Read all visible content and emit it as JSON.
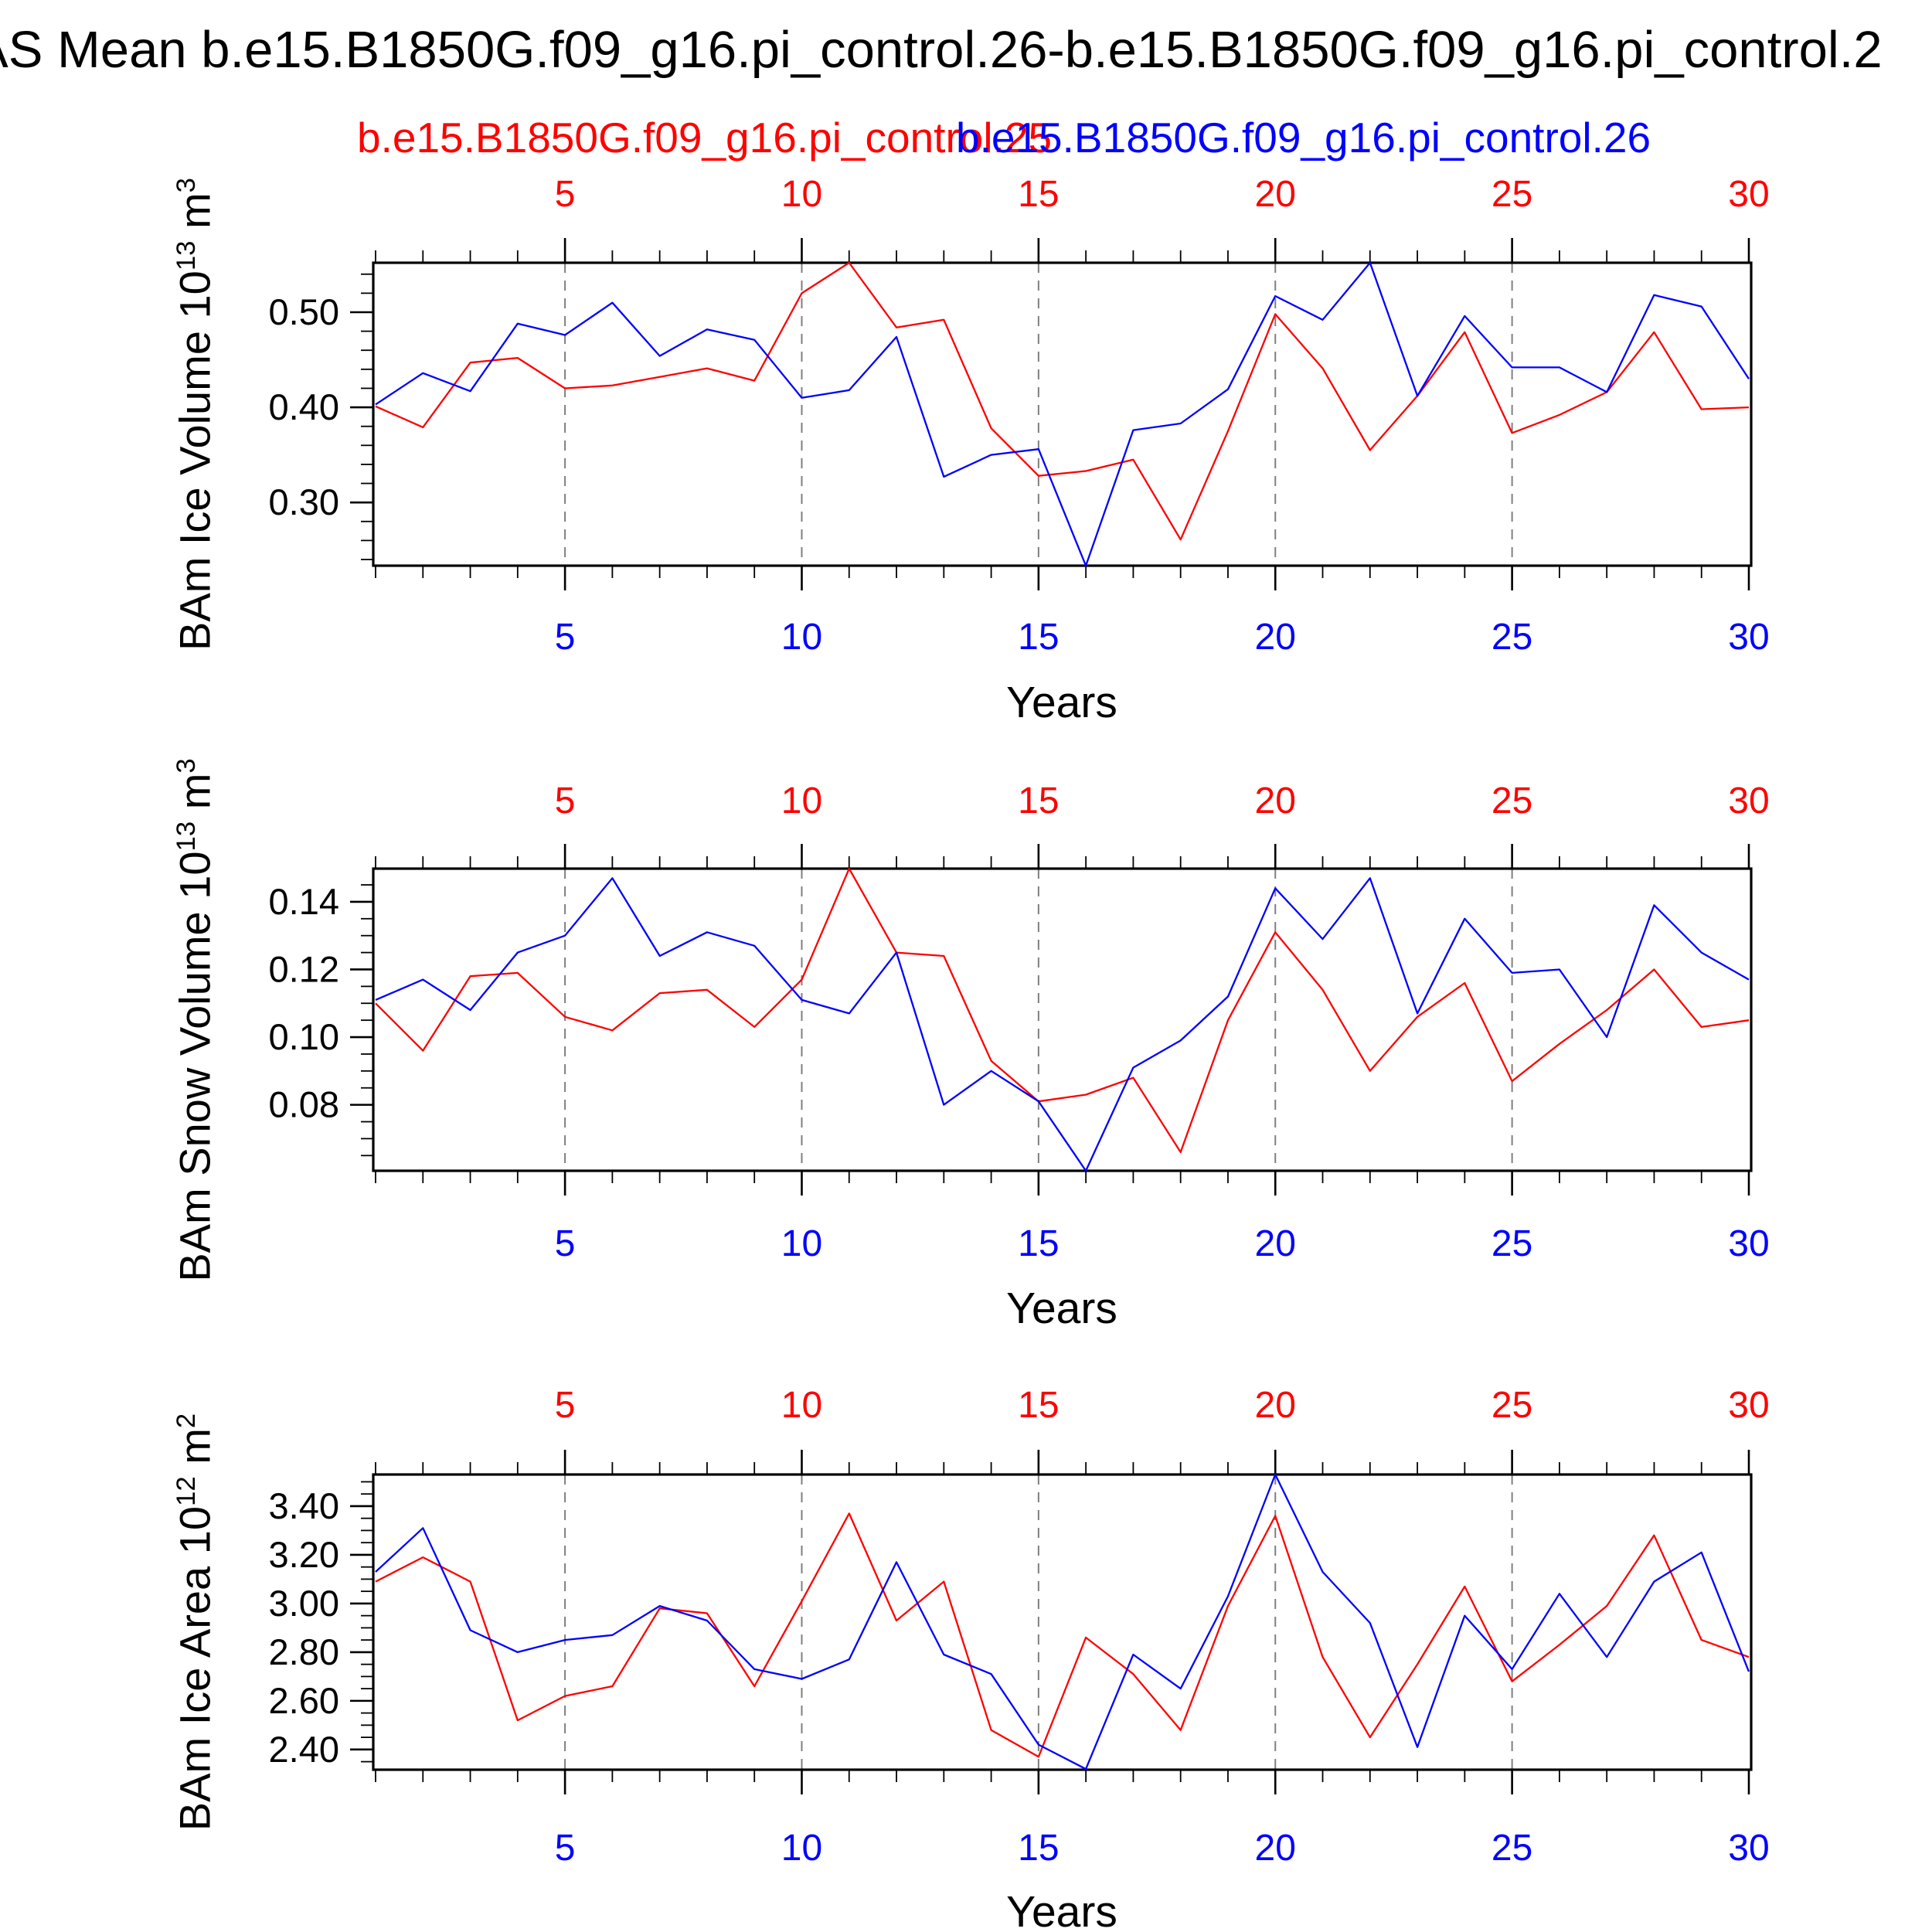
{
  "title": "AS Mean b.e15.B1850G.f09_g16.pi_control.26-b.e15.B1850G.f09_g16.pi_control.2",
  "legend": {
    "red_label": "b.e15.B1850G.f09_g16.pi_control.25",
    "blue_label": "b.e15.B1850G.f09_g16.pi_control.26"
  },
  "colors": {
    "red_series": "#ff0000",
    "blue_series": "#0000ff",
    "grid": "#7f7f7f",
    "axis": "#000000",
    "background": "#ffffff"
  },
  "x_axis": {
    "label": "Years",
    "major_ticks": [
      5,
      10,
      15,
      20,
      25,
      30
    ],
    "gridlines": [
      5,
      10,
      15,
      20,
      25
    ],
    "minor_tick_step": 1,
    "range": [
      0.95,
      30.05
    ]
  },
  "years": [
    1,
    2,
    3,
    4,
    5,
    6,
    7,
    8,
    9,
    10,
    11,
    12,
    13,
    14,
    15,
    16,
    17,
    18,
    19,
    20,
    21,
    22,
    23,
    24,
    25,
    26,
    27,
    28,
    29,
    30
  ],
  "chart_data": [
    {
      "type": "line",
      "ylabel_text": "BAm Ice Volume 10^13 m^3",
      "ylabel_parts": {
        "pre": "BAm Ice Volume 10",
        "sup1": "13",
        "mid": " m",
        "sup2": "3"
      },
      "ylim": [
        0.2335,
        0.552
      ],
      "yticks": {
        "labels": [
          "0.50",
          "0.40",
          "0.30"
        ],
        "values": [
          0.5,
          0.4,
          0.3
        ],
        "minor_step": 0.02
      },
      "series": [
        {
          "name": "b.e15.B1850G.f09_g16.pi_control.25",
          "color": "red",
          "values": [
            0.401,
            0.379,
            0.447,
            0.452,
            0.42,
            0.423,
            0.432,
            0.441,
            0.428,
            0.52,
            0.552,
            0.484,
            0.492,
            0.378,
            0.328,
            0.333,
            0.345,
            0.261,
            0.375,
            0.498,
            0.441,
            0.355,
            0.412,
            0.479,
            0.373,
            0.392,
            0.416,
            0.479,
            0.398,
            0.4
          ]
        },
        {
          "name": "b.e15.B1850G.f09_g16.pi_control.26",
          "color": "blue",
          "values": [
            0.403,
            0.436,
            0.417,
            0.488,
            0.476,
            0.51,
            0.454,
            0.482,
            0.471,
            0.41,
            0.418,
            0.474,
            0.327,
            0.35,
            0.356,
            0.233,
            0.376,
            0.383,
            0.419,
            0.517,
            0.492,
            0.552,
            0.412,
            0.496,
            0.442,
            0.442,
            0.416,
            0.518,
            0.506,
            0.43
          ]
        }
      ]
    },
    {
      "type": "line",
      "ylabel_text": "BAm Snow Volume 10^13 m^3",
      "ylabel_parts": {
        "pre": "BAm Snow Volume 10",
        "sup1": "13",
        "mid": " m",
        "sup2": "3"
      },
      "ylim": [
        0.0605,
        0.1498
      ],
      "yticks": {
        "labels": [
          "0.14",
          "0.12",
          "0.10",
          "0.08"
        ],
        "values": [
          0.14,
          0.12,
          0.1,
          0.08
        ],
        "minor_step": 0.005
      },
      "series": [
        {
          "name": "b.e15.B1850G.f09_g16.pi_control.25",
          "color": "red",
          "values": [
            0.11,
            0.096,
            0.118,
            0.119,
            0.106,
            0.102,
            0.113,
            0.114,
            0.103,
            0.117,
            0.15,
            0.125,
            0.124,
            0.093,
            0.081,
            0.083,
            0.088,
            0.066,
            0.105,
            0.131,
            0.114,
            0.09,
            0.106,
            0.116,
            0.087,
            0.098,
            0.108,
            0.12,
            0.103,
            0.105
          ]
        },
        {
          "name": "b.e15.B1850G.f09_g16.pi_control.26",
          "color": "blue",
          "values": [
            0.111,
            0.117,
            0.108,
            0.125,
            0.13,
            0.147,
            0.124,
            0.131,
            0.127,
            0.111,
            0.107,
            0.125,
            0.08,
            0.09,
            0.081,
            0.06,
            0.091,
            0.099,
            0.112,
            0.144,
            0.129,
            0.147,
            0.107,
            0.135,
            0.119,
            0.12,
            0.1,
            0.139,
            0.125,
            0.117
          ]
        }
      ]
    },
    {
      "type": "line",
      "ylabel_text": "BAm Ice Area 10^12 m^2",
      "ylabel_parts": {
        "pre": "BAm Ice Area 10",
        "sup1": "12",
        "mid": " m",
        "sup2": "2"
      },
      "ylim": [
        2.317,
        3.53
      ],
      "yticks": {
        "labels": [
          "3.40",
          "3.20",
          "3.00",
          "2.80",
          "2.60",
          "2.40"
        ],
        "values": [
          3.4,
          3.2,
          3.0,
          2.8,
          2.6,
          2.4
        ],
        "minor_step": 0.05
      },
      "series": [
        {
          "name": "b.e15.B1850G.f09_g16.pi_control.25",
          "color": "red",
          "values": [
            3.09,
            3.19,
            3.09,
            2.52,
            2.62,
            2.66,
            2.98,
            2.96,
            2.66,
            3.01,
            3.37,
            2.93,
            3.09,
            2.48,
            2.37,
            2.86,
            2.71,
            2.48,
            2.99,
            3.36,
            2.78,
            2.45,
            2.75,
            3.07,
            2.68,
            2.83,
            2.99,
            3.28,
            2.85,
            2.78
          ]
        },
        {
          "name": "b.e15.B1850G.f09_g16.pi_control.26",
          "color": "blue",
          "values": [
            3.13,
            3.31,
            2.89,
            2.8,
            2.85,
            2.87,
            2.99,
            2.93,
            2.73,
            2.69,
            2.77,
            3.17,
            2.79,
            2.71,
            2.42,
            2.32,
            2.79,
            2.65,
            3.03,
            3.53,
            3.13,
            2.92,
            2.41,
            2.95,
            2.73,
            3.04,
            2.78,
            3.09,
            3.21,
            2.72
          ]
        }
      ]
    }
  ]
}
